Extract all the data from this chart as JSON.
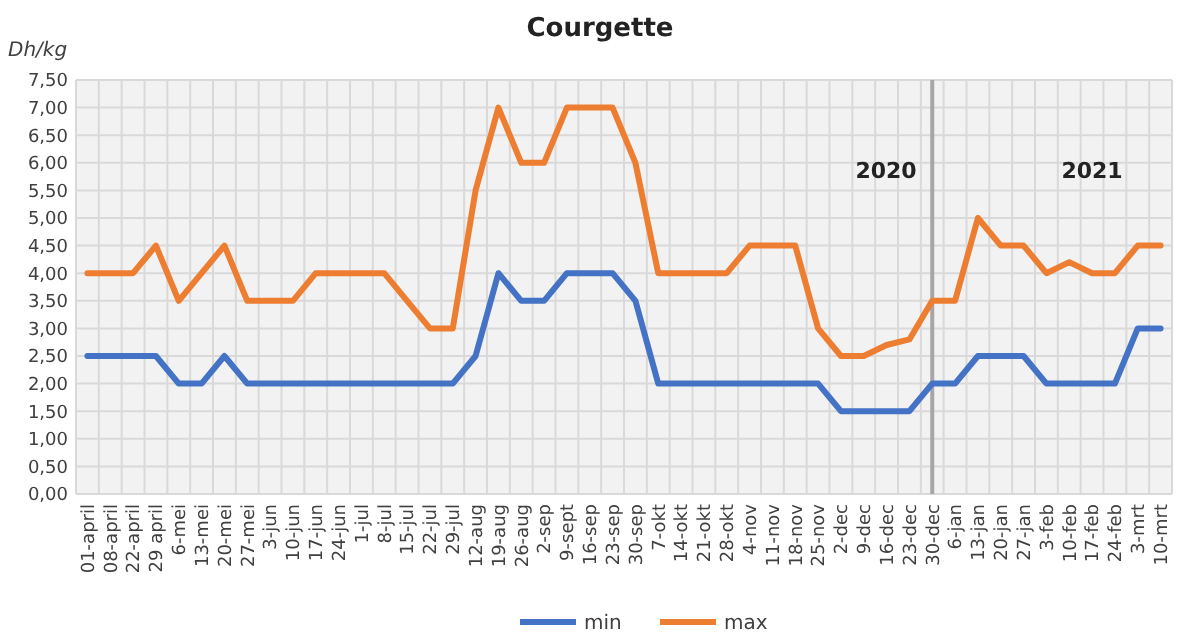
{
  "chart_data": {
    "type": "line",
    "title": "Courgette",
    "ylabel": "Dh/kg",
    "categories": [
      "01-april",
      "08-april",
      "22-april",
      "29 april",
      "6-mei",
      "13-mei",
      "20-mei",
      "27-mei",
      "3-jun",
      "10-jun",
      "17-jun",
      "24-jun",
      "1-jul",
      "8-jul",
      "15-jul",
      "22-jul",
      "29-jul",
      "12-aug",
      "19-aug",
      "26-aug",
      "2-sep",
      "9-sept",
      "16-sep",
      "23-sep",
      "30-sep",
      "7-okt",
      "14-okt",
      "21-okt",
      "28-okt",
      "4-nov",
      "11-nov",
      "18-nov",
      "25-nov",
      "2-dec",
      "9-dec",
      "16-dec",
      "23-dec",
      "30-dec",
      "6-jan",
      "13-jan",
      "20-jan",
      "27-jan",
      "3-feb",
      "10-feb",
      "17-feb",
      "24-feb",
      "3-mrt",
      "10-mrt"
    ],
    "series": [
      {
        "name": "min",
        "color": "#4472c4",
        "values": [
          2.5,
          2.5,
          2.5,
          2.5,
          2,
          2,
          2.5,
          2,
          2,
          2,
          2,
          2,
          2,
          2,
          2,
          2,
          2,
          2.5,
          4,
          3.5,
          3.5,
          4,
          4,
          4,
          3.5,
          2,
          2,
          2,
          2,
          2,
          2,
          2,
          2,
          1.5,
          1.5,
          1.5,
          1.5,
          2,
          2,
          2.5,
          2.5,
          2.5,
          2,
          2,
          2,
          2,
          3,
          3
        ]
      },
      {
        "name": "max",
        "color": "#ed7d31",
        "values": [
          4,
          4,
          4,
          4.5,
          3.5,
          4,
          4.5,
          3.5,
          3.5,
          3.5,
          4,
          4,
          4,
          4,
          3.5,
          3,
          3,
          5.5,
          7,
          6,
          6,
          7,
          7,
          7,
          6,
          4,
          4,
          4,
          4,
          4.5,
          4.5,
          4.5,
          3,
          2.5,
          2.5,
          2.7,
          2.8,
          3.5,
          3.5,
          5,
          4.5,
          4.5,
          4,
          4.2,
          4,
          4,
          4.5,
          4.5
        ]
      }
    ],
    "ylim": [
      0,
      7.5
    ],
    "yticks": [
      {
        "value": 0,
        "label": "0,00"
      },
      {
        "value": 0.5,
        "label": "0,50"
      },
      {
        "value": 1,
        "label": "1,00"
      },
      {
        "value": 1.5,
        "label": "1,50"
      },
      {
        "value": 2,
        "label": "2,00"
      },
      {
        "value": 2.5,
        "label": "2,50"
      },
      {
        "value": 3,
        "label": "3,00"
      },
      {
        "value": 3.5,
        "label": "3,50"
      },
      {
        "value": 4,
        "label": "4,00"
      },
      {
        "value": 4.5,
        "label": "4,50"
      },
      {
        "value": 5,
        "label": "5,00"
      },
      {
        "value": 5.5,
        "label": "5,50"
      },
      {
        "value": 6,
        "label": "6,00"
      },
      {
        "value": 6.5,
        "label": "6,50"
      },
      {
        "value": 7,
        "label": "7,00"
      },
      {
        "value": 7.5,
        "label": "7,50"
      }
    ],
    "ref_lines": [
      {
        "axis": "x",
        "value": "30-dec",
        "color": "#a6a6a6"
      }
    ],
    "annotations": [
      "2020",
      "2021"
    ],
    "grid": true,
    "legend": "bottom",
    "marker": "none",
    "line_style": "solid"
  }
}
